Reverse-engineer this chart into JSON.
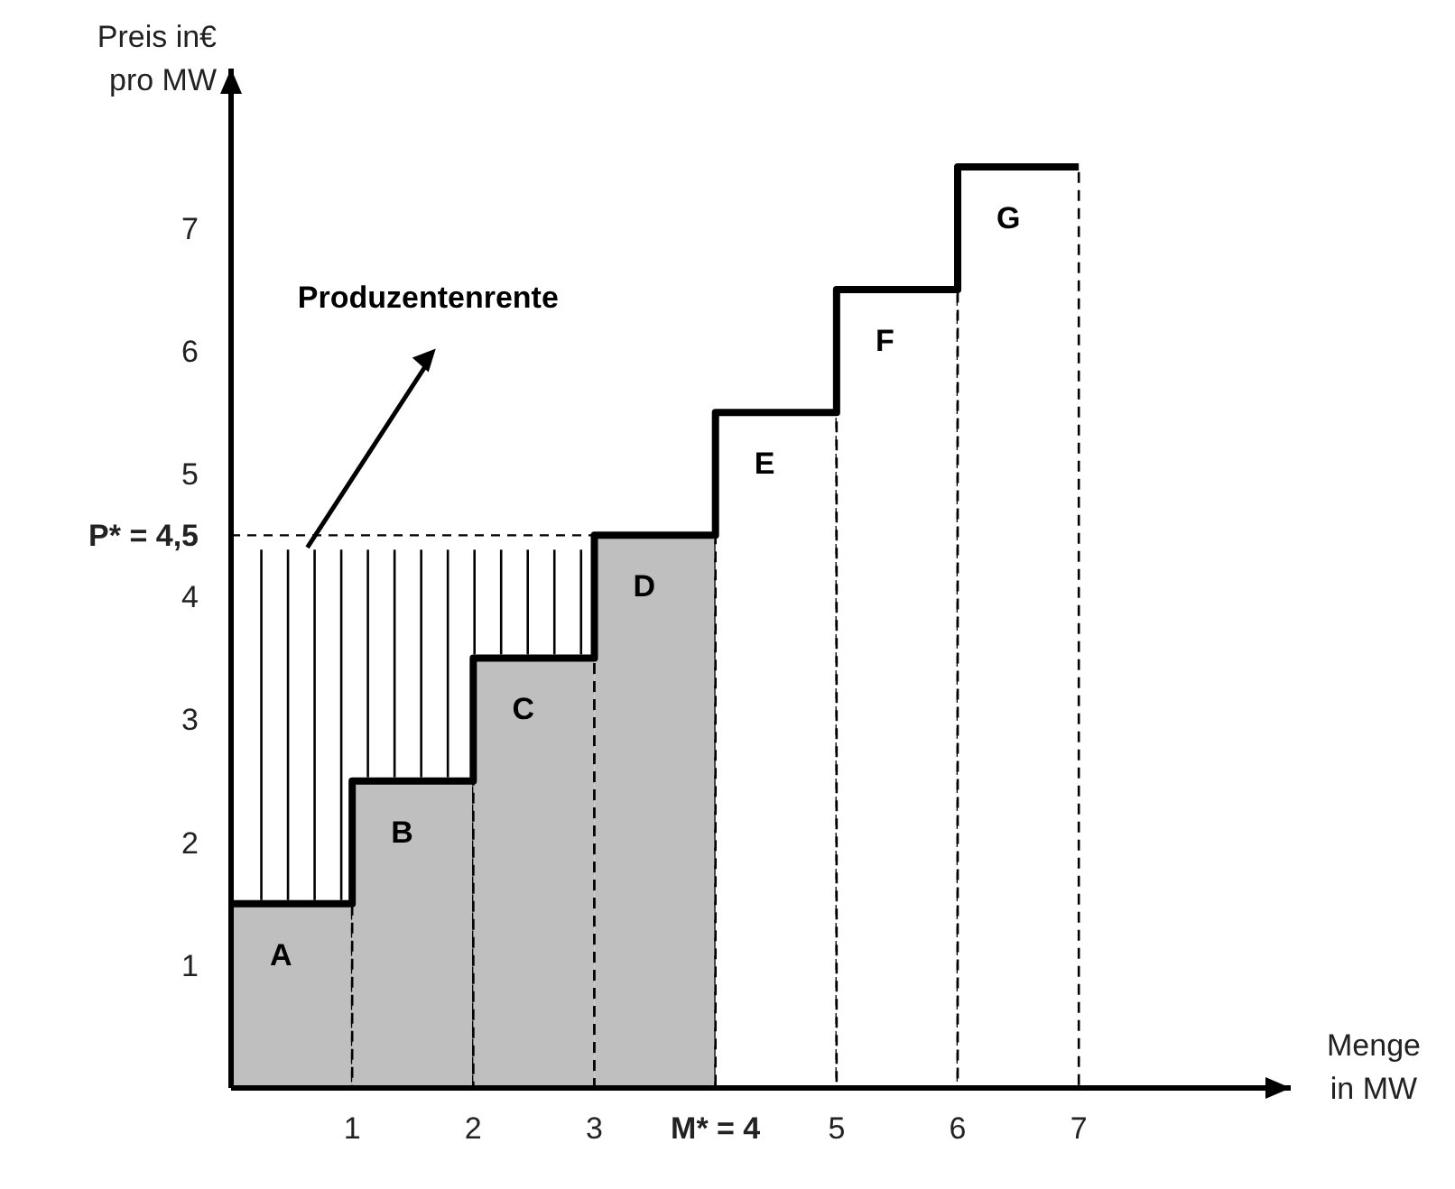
{
  "chart_data": {
    "type": "bar",
    "ylabel": "Preis in€ pro MW",
    "xlabel": "Menge in MW",
    "annotations": [
      "Produzentenrente"
    ],
    "xlim": [
      0,
      8.75
    ],
    "ylim": [
      0,
      8.3
    ],
    "xticks": [
      1,
      2,
      3,
      {
        "value": 4,
        "label": "M* = 4"
      },
      5,
      6,
      7
    ],
    "yticks": [
      1,
      2,
      3,
      4,
      {
        "value": 4.5,
        "label": "P* = 4,5"
      },
      5,
      6,
      7
    ],
    "ref_lines": [
      {
        "axis": "y",
        "value": 4.5,
        "line_style": "dashed",
        "color": "#000000"
      }
    ],
    "series": [
      {
        "x": [
          0.5,
          1.5,
          2.5,
          3.5,
          4.5,
          5.5,
          6.5
        ],
        "values": [
          1.5,
          2.5,
          3.5,
          4.5,
          5.5,
          6.5,
          7.5
        ],
        "colors": [
          "#bfbfbf",
          "#bfbfbf",
          "#bfbfbf",
          "#bfbfbf",
          "#ffffff",
          "#ffffff",
          "#ffffff"
        ],
        "value_labels": [
          "A",
          "B",
          "C",
          "D",
          "E",
          "F",
          "G"
        ]
      },
      {
        "type": "step",
        "x": [
          0,
          1,
          2,
          3,
          4,
          5,
          6,
          7
        ],
        "values": [
          1.5,
          2.5,
          3.5,
          4.5,
          5.5,
          6.5,
          7.5,
          7.5
        ],
        "color": "#000000"
      }
    ]
  }
}
